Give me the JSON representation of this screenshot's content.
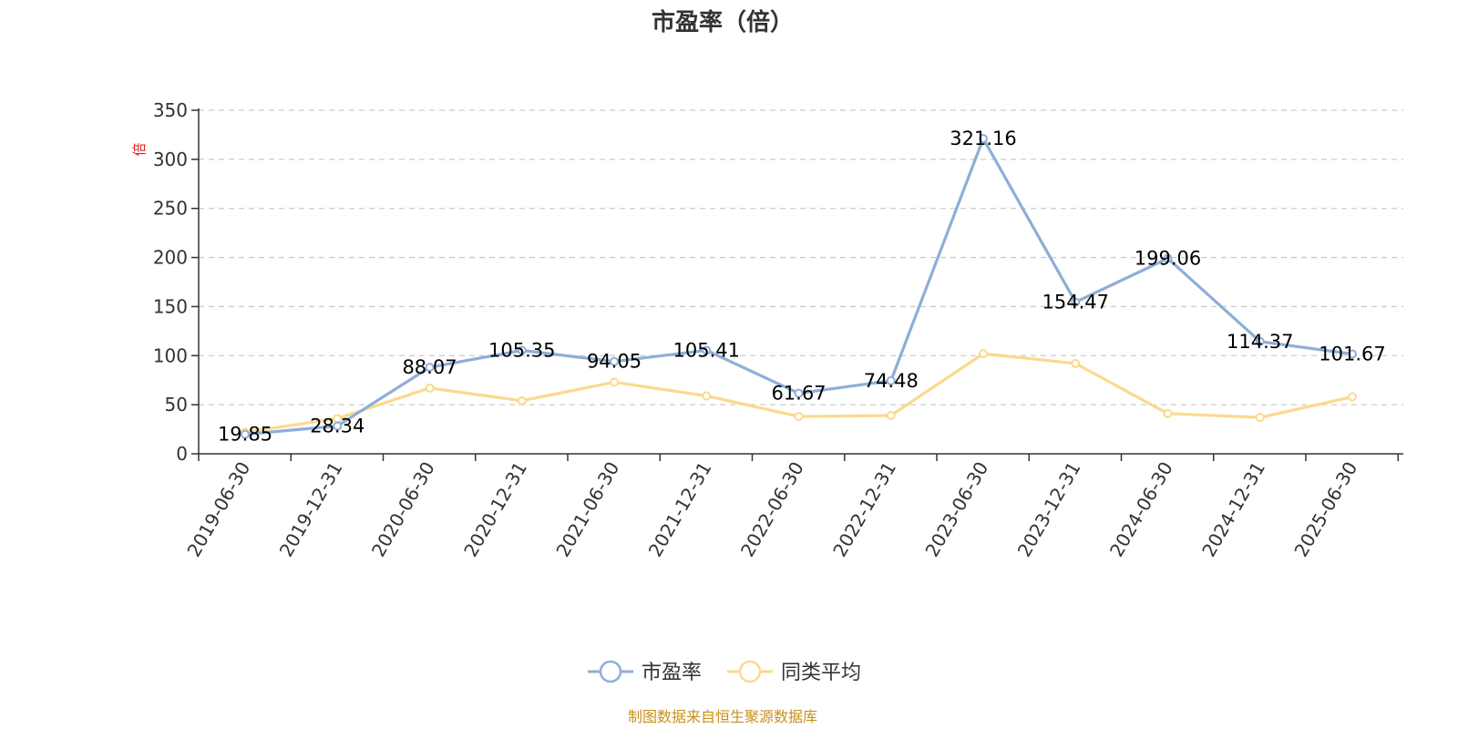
{
  "chart_data": {
    "type": "line",
    "title": "市盈率（倍）",
    "ylabel": "倍",
    "ylim": [
      0,
      350
    ],
    "yticks": [
      0,
      50,
      100,
      150,
      200,
      250,
      300,
      350
    ],
    "grid": true,
    "legend_position": "bottom",
    "categories": [
      "2019-06-30",
      "2019-12-31",
      "2020-06-30",
      "2020-12-31",
      "2021-06-30",
      "2021-12-31",
      "2022-06-30",
      "2022-12-31",
      "2023-06-30",
      "2023-12-31",
      "2024-06-30",
      "2024-12-31",
      "2025-06-30"
    ],
    "series": [
      {
        "name": "市盈率",
        "color": "#8eaed8",
        "values": [
          19.85,
          28.34,
          88.07,
          105.35,
          94.05,
          105.41,
          61.67,
          74.48,
          321.16,
          154.47,
          199.06,
          114.37,
          101.67
        ],
        "labels": [
          "19.85",
          "28.34",
          "88.07",
          "105.35",
          "94.05",
          "105.41",
          "61.67",
          "74.48",
          "321.16",
          "154.47",
          "199.06",
          "114.37",
          "101.67"
        ]
      },
      {
        "name": "同类平均",
        "color": "#fbd98e",
        "values": [
          22,
          36,
          67,
          54,
          73,
          59,
          38,
          39,
          102,
          92,
          41,
          37,
          58
        ]
      }
    ],
    "source": "制图数据来自恒生聚源数据库"
  }
}
